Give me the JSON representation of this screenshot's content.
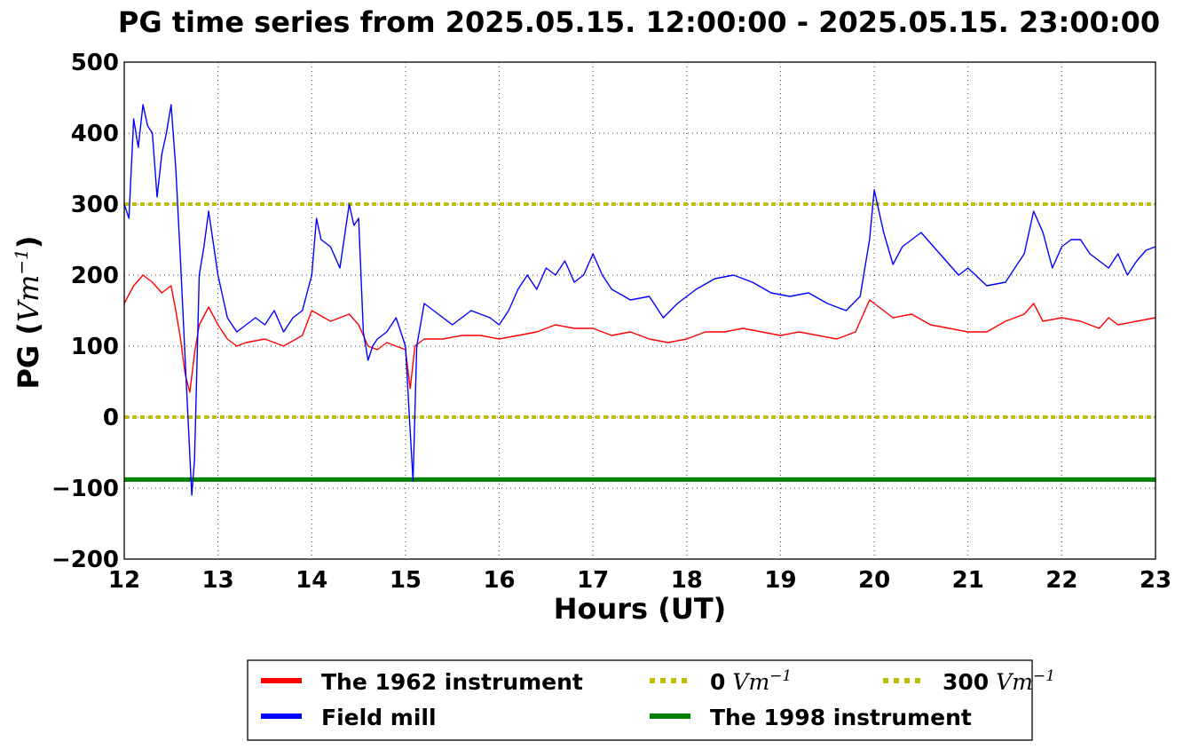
{
  "chart_data": {
    "type": "line",
    "title": "PG time series from 2025.05.15. 12:00:00 - 2025.05.15. 23:00:00",
    "xlabel": "Hours (UT)",
    "ylabel": "PG (",
    "ylabel_unit": "Vm",
    "ylabel_unit_exp": "−1",
    "ylabel_close": ")",
    "xlim": [
      12,
      23
    ],
    "ylim": [
      -200,
      500
    ],
    "xticks": [
      12,
      13,
      14,
      15,
      16,
      17,
      18,
      19,
      20,
      21,
      22,
      23
    ],
    "yticks": [
      500,
      400,
      300,
      200,
      100,
      0,
      -100,
      -200
    ],
    "ytick_labels": [
      "500",
      "400",
      "300",
      "200",
      "100",
      "0",
      "−100",
      "−200"
    ],
    "grid": true,
    "legend_placement": "below",
    "series": [
      {
        "name": "The 1962 instrument",
        "color": "#ff0000",
        "style": "solid",
        "x": [
          12.0,
          12.1,
          12.2,
          12.3,
          12.4,
          12.5,
          12.55,
          12.6,
          12.65,
          12.7,
          12.75,
          12.8,
          12.9,
          13.0,
          13.1,
          13.2,
          13.3,
          13.5,
          13.7,
          13.9,
          14.0,
          14.2,
          14.4,
          14.5,
          14.6,
          14.7,
          14.8,
          14.9,
          15.0,
          15.05,
          15.1,
          15.2,
          15.4,
          15.6,
          15.8,
          16.0,
          16.2,
          16.4,
          16.6,
          16.8,
          17.0,
          17.2,
          17.4,
          17.6,
          17.8,
          18.0,
          18.2,
          18.4,
          18.6,
          18.8,
          19.0,
          19.2,
          19.4,
          19.6,
          19.8,
          19.95,
          20.0,
          20.2,
          20.4,
          20.6,
          20.8,
          21.0,
          21.2,
          21.4,
          21.6,
          21.7,
          21.8,
          22.0,
          22.2,
          22.4,
          22.5,
          22.6,
          22.8,
          23.0
        ],
        "y": [
          160,
          185,
          200,
          190,
          175,
          185,
          150,
          110,
          60,
          35,
          90,
          130,
          155,
          130,
          110,
          100,
          105,
          110,
          100,
          115,
          150,
          135,
          145,
          130,
          100,
          95,
          105,
          100,
          95,
          40,
          100,
          110,
          110,
          115,
          115,
          110,
          115,
          120,
          130,
          125,
          125,
          115,
          120,
          110,
          105,
          110,
          120,
          120,
          125,
          120,
          115,
          120,
          115,
          110,
          120,
          165,
          160,
          140,
          145,
          130,
          125,
          120,
          120,
          135,
          145,
          160,
          135,
          140,
          135,
          125,
          140,
          130,
          135,
          140
        ]
      },
      {
        "name": "The 1998 instrument",
        "color": "#008000",
        "style": "solid",
        "x": [
          12,
          23
        ],
        "y": [
          -88,
          -88
        ]
      },
      {
        "name": "Field mill",
        "color": "#0000ff",
        "style": "solid",
        "x": [
          12.0,
          12.05,
          12.1,
          12.15,
          12.2,
          12.25,
          12.3,
          12.35,
          12.4,
          12.45,
          12.5,
          12.55,
          12.6,
          12.65,
          12.68,
          12.72,
          12.75,
          12.8,
          12.85,
          12.9,
          13.0,
          13.1,
          13.2,
          13.3,
          13.4,
          13.5,
          13.6,
          13.7,
          13.8,
          13.9,
          14.0,
          14.05,
          14.1,
          14.2,
          14.3,
          14.4,
          14.45,
          14.5,
          14.55,
          14.6,
          14.65,
          14.7,
          14.8,
          14.9,
          15.0,
          15.05,
          15.08,
          15.12,
          15.2,
          15.3,
          15.5,
          15.7,
          15.9,
          16.0,
          16.1,
          16.2,
          16.3,
          16.4,
          16.5,
          16.6,
          16.7,
          16.8,
          16.9,
          17.0,
          17.1,
          17.2,
          17.4,
          17.6,
          17.75,
          17.9,
          18.1,
          18.3,
          18.5,
          18.7,
          18.9,
          19.1,
          19.3,
          19.5,
          19.7,
          19.85,
          19.95,
          20.0,
          20.1,
          20.2,
          20.3,
          20.5,
          20.7,
          20.9,
          21.0,
          21.2,
          21.4,
          21.5,
          21.6,
          21.7,
          21.8,
          21.9,
          22.0,
          22.1,
          22.2,
          22.3,
          22.4,
          22.5,
          22.6,
          22.7,
          22.8,
          22.9,
          23.0
        ],
        "y": [
          300,
          280,
          420,
          380,
          440,
          410,
          400,
          310,
          370,
          400,
          440,
          350,
          220,
          80,
          0,
          -110,
          -60,
          200,
          240,
          290,
          200,
          140,
          120,
          130,
          140,
          130,
          150,
          120,
          140,
          150,
          200,
          280,
          250,
          240,
          210,
          300,
          270,
          280,
          120,
          80,
          100,
          110,
          120,
          140,
          100,
          -20,
          -90,
          100,
          160,
          150,
          130,
          150,
          140,
          130,
          150,
          180,
          200,
          180,
          210,
          200,
          220,
          190,
          200,
          230,
          200,
          180,
          165,
          170,
          140,
          160,
          180,
          195,
          200,
          190,
          175,
          170,
          175,
          160,
          150,
          170,
          250,
          320,
          260,
          215,
          240,
          260,
          230,
          200,
          210,
          185,
          190,
          210,
          230,
          290,
          260,
          210,
          240,
          250,
          250,
          230,
          220,
          210,
          230,
          200,
          220,
          235,
          240
        ]
      },
      {
        "name": "300",
        "name_unit": "Vm",
        "name_unit_exp": "−1",
        "color": "#bfbf00",
        "style": "dotted",
        "x": [
          12,
          23
        ],
        "y": [
          300,
          300
        ]
      },
      {
        "name": "0",
        "name_unit": "Vm",
        "name_unit_exp": "−1",
        "color": "#bfbf00",
        "style": "dotted",
        "x": [
          12,
          23
        ],
        "y": [
          0,
          0
        ]
      }
    ],
    "legend_order": [
      0,
      2,
      4,
      1,
      3
    ]
  }
}
